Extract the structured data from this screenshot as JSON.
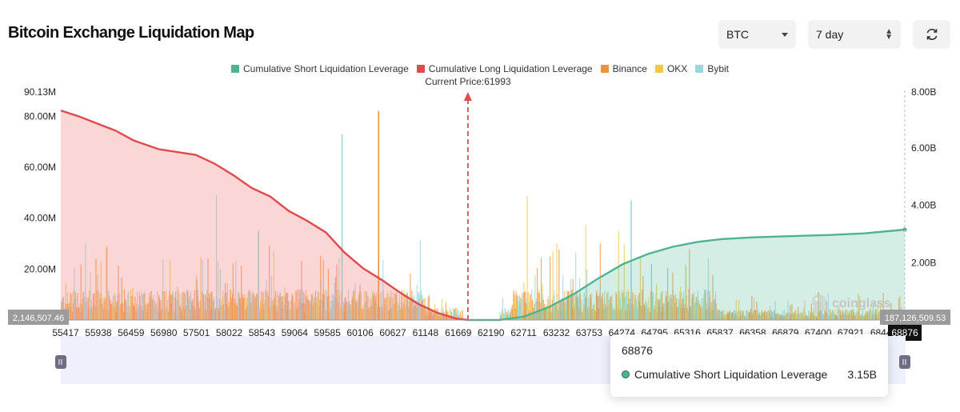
{
  "header": {
    "title": "Bitcoin Exchange Liquidation Map",
    "coin_select": "BTC",
    "range_select": "7 day"
  },
  "legend": [
    {
      "label": "Cumulative Short Liquidation Leverage",
      "color": "#4fb390"
    },
    {
      "label": "Cumulative Long Liquidation Leverage",
      "color": "#e04b4b"
    },
    {
      "label": "Binance",
      "color": "#f0903a"
    },
    {
      "label": "OKX",
      "color": "#f3c74a"
    },
    {
      "label": "Bybit",
      "color": "#9bd6dc"
    }
  ],
  "tooltip": {
    "title": "68876",
    "series": "Cumulative Short Liquidation Leverage",
    "value": "3.15B"
  },
  "watermark": "coinglass",
  "colors": {
    "short": "#4fb390",
    "long": "#e04b4b",
    "binance": "#f0903a",
    "okx": "#f3c74a",
    "bybit": "#9bd6dc",
    "slider": "#eef0fb"
  },
  "chart_data": {
    "type": "area",
    "title": "Bitcoin Exchange Liquidation Map",
    "current_price_label": "Current Price:61993",
    "current_price": 61993,
    "x_range": [
      55417,
      69050
    ],
    "x_ticks": [
      "55417",
      "55938",
      "56459",
      "56980",
      "57501",
      "58022",
      "58543",
      "59064",
      "59585",
      "60106",
      "60627",
      "61148",
      "61669",
      "62190",
      "62711",
      "63232",
      "63753",
      "64274",
      "64795",
      "65316",
      "65837",
      "66358",
      "66879",
      "67400",
      "67921",
      "68442"
    ],
    "x_cursor_label": "68876",
    "y_left_max_label": "90.13M",
    "y_left_ticks": [
      "20.00M",
      "40.00M",
      "60.00M",
      "80.00M"
    ],
    "y_left_range": [
      0,
      90130000
    ],
    "y_right_max_label": "8.00B",
    "y_right_ticks": [
      "2.00B",
      "4.00B",
      "6.00B"
    ],
    "y_right_range": [
      0,
      8000000000
    ],
    "left_badge": "2,146,507.46",
    "right_badge": "187,126,509.53",
    "series": [
      {
        "name": "Cumulative Long Liquidation Leverage",
        "axis": "right",
        "x": [
          55417,
          55700,
          56000,
          56300,
          56600,
          57000,
          57300,
          57600,
          57900,
          58200,
          58500,
          58800,
          59100,
          59400,
          59700,
          60000,
          60300,
          60600,
          60900,
          61200,
          61500,
          61800,
          61993
        ],
        "y": [
          7.3,
          7.1,
          6.85,
          6.6,
          6.25,
          5.95,
          5.85,
          5.75,
          5.45,
          5.05,
          4.6,
          4.3,
          3.8,
          3.45,
          3.05,
          2.35,
          1.8,
          1.4,
          0.95,
          0.55,
          0.25,
          0.05,
          0.0
        ]
      },
      {
        "name": "Cumulative Short Liquidation Leverage",
        "axis": "right",
        "x": [
          61993,
          62500,
          62900,
          63300,
          63700,
          64100,
          64500,
          64900,
          65300,
          65700,
          66100,
          66600,
          67200,
          67800,
          68400,
          69050
        ],
        "y": [
          0.0,
          0.0,
          0.12,
          0.45,
          0.9,
          1.45,
          1.95,
          2.3,
          2.55,
          2.72,
          2.82,
          2.88,
          2.92,
          2.96,
          3.02,
          3.15
        ]
      }
    ],
    "bar_series": [
      {
        "name": "Binance",
        "axis": "left"
      },
      {
        "name": "OKX",
        "axis": "left"
      },
      {
        "name": "Bybit",
        "axis": "left"
      }
    ],
    "bar_peaks": [
      {
        "name": "Binance",
        "x": 60540,
        "y": 82000000
      },
      {
        "name": "Bybit",
        "x": 59950,
        "y": 73000000
      },
      {
        "name": "Bybit",
        "x": 64620,
        "y": 47000000
      },
      {
        "name": "Bybit",
        "x": 58600,
        "y": 35000000
      }
    ]
  }
}
